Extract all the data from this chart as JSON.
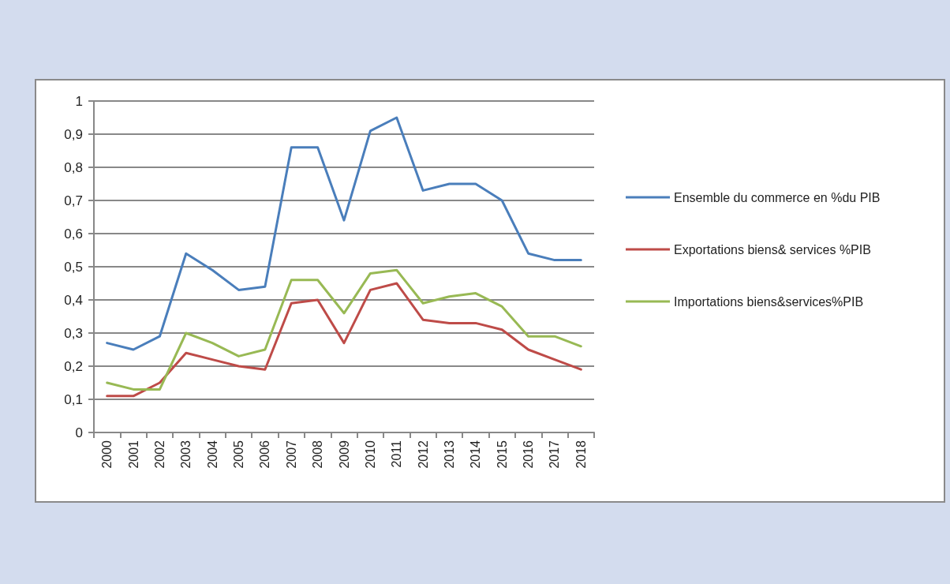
{
  "chart_data": {
    "type": "line",
    "categories": [
      "2000",
      "2001",
      "2002",
      "2003",
      "2004",
      "2005",
      "2006",
      "2007",
      "2008",
      "2009",
      "2010",
      "2011",
      "2012",
      "2013",
      "2014",
      "2015",
      "2016",
      "2017",
      "2018"
    ],
    "series": [
      {
        "name": "Ensemble du commerce en %du PIB",
        "color": "#4a7ebb",
        "values": [
          0.27,
          0.25,
          0.29,
          0.54,
          0.49,
          0.43,
          0.44,
          0.86,
          0.86,
          0.64,
          0.91,
          0.95,
          0.73,
          0.75,
          0.75,
          0.7,
          0.54,
          0.52,
          0.52
        ]
      },
      {
        "name": "Exportations biens& services %PIB",
        "color": "#be4b48",
        "values": [
          0.11,
          0.11,
          0.15,
          0.24,
          0.22,
          0.2,
          0.19,
          0.39,
          0.4,
          0.27,
          0.43,
          0.45,
          0.34,
          0.33,
          0.33,
          0.31,
          0.25,
          0.22,
          0.19
        ]
      },
      {
        "name": "Importations biens&services%PIB",
        "color": "#98b954",
        "values": [
          0.15,
          0.13,
          0.13,
          0.3,
          0.27,
          0.23,
          0.25,
          0.46,
          0.46,
          0.36,
          0.48,
          0.49,
          0.39,
          0.41,
          0.42,
          0.38,
          0.29,
          0.29,
          0.26
        ]
      }
    ],
    "ylim": [
      0,
      1
    ],
    "yticks": [
      0,
      {
        "value": 0.1,
        "label": "0,1"
      },
      {
        "value": 0.2,
        "label": "0,2"
      },
      {
        "value": 0.3,
        "label": "0,3"
      },
      {
        "value": 0.4,
        "label": "0,4"
      },
      {
        "value": 0.5,
        "label": "0,5"
      },
      {
        "value": 0.6,
        "label": "0,6"
      },
      {
        "value": 0.7,
        "label": "0,7"
      },
      {
        "value": 0.8,
        "label": "0,8"
      },
      {
        "value": 0.9,
        "label": "0,9"
      },
      1
    ],
    "grid": "y",
    "legend": "right",
    "marker": "none",
    "line_style": "solid"
  }
}
